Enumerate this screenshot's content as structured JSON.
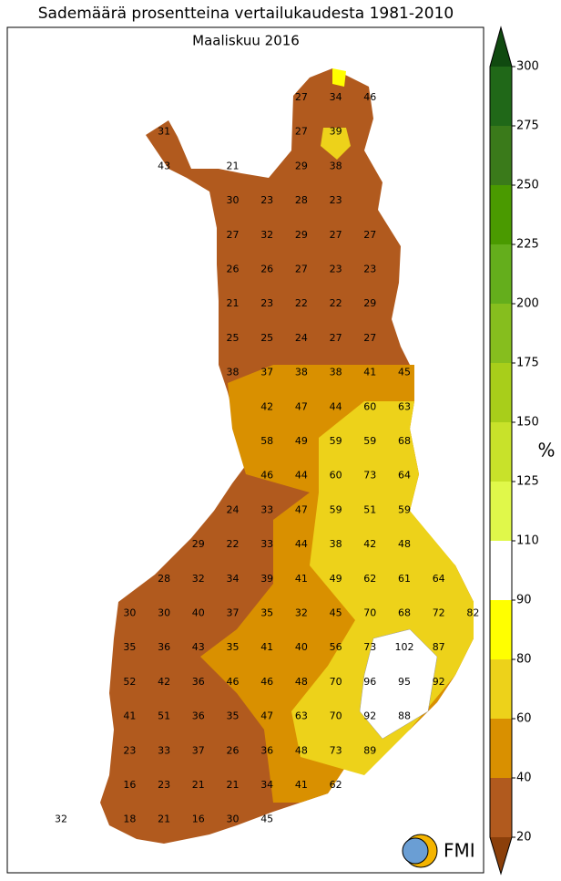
{
  "title": "Sademäärä prosentteina vertailukaudesta 1981-2010",
  "subtitle": "Maaliskuu 2016",
  "logo": "FMI",
  "colorbar": {
    "unit": "%",
    "ticks": [
      20,
      40,
      60,
      80,
      90,
      110,
      125,
      150,
      175,
      200,
      225,
      250,
      275,
      300
    ],
    "colors": [
      "#b15a1e",
      "#d99000",
      "#edd21a",
      "#ffff00",
      "#ffffff",
      "#e0f84a",
      "#c8e22a",
      "#a8ce1a",
      "#86be1e",
      "#64ae1c",
      "#4a9a00",
      "#3a7a1a",
      "#206818"
    ],
    "under": "#8b3f0a",
    "over": "#104a10"
  },
  "stations": [
    [
      27,
      34,
      46
    ],
    [
      31,
      27,
      39
    ],
    [
      43,
      21,
      29,
      38
    ],
    [
      30,
      23,
      28,
      23
    ],
    [
      27,
      32,
      29,
      27,
      27
    ],
    [
      26,
      26,
      27,
      23,
      23
    ],
    [
      21,
      23,
      22,
      22,
      29
    ],
    [
      25,
      25,
      24,
      27,
      27
    ],
    [
      38,
      37,
      38,
      38,
      41,
      45
    ],
    [
      42,
      47,
      44,
      60,
      63
    ],
    [
      58,
      49,
      59,
      59,
      68
    ],
    [
      46,
      44,
      60,
      73,
      64
    ],
    [
      24,
      33,
      47,
      59,
      51,
      59
    ],
    [
      29,
      22,
      33,
      44,
      38,
      42,
      48
    ],
    [
      28,
      32,
      34,
      39,
      41,
      49,
      62,
      61,
      64
    ],
    [
      30,
      30,
      40,
      37,
      35,
      32,
      45,
      70,
      68,
      72,
      82
    ],
    [
      35,
      36,
      43,
      35,
      41,
      40,
      56,
      73,
      102,
      87
    ],
    [
      52,
      42,
      36,
      46,
      46,
      48,
      70,
      96,
      95,
      92
    ],
    [
      41,
      51,
      36,
      35,
      47,
      63,
      70,
      92,
      88
    ],
    [
      23,
      33,
      37,
      26,
      36,
      48,
      73,
      89
    ],
    [
      16,
      23,
      21,
      21,
      34,
      41,
      62
    ],
    [
      32,
      18,
      21,
      16,
      30,
      45
    ]
  ]
}
